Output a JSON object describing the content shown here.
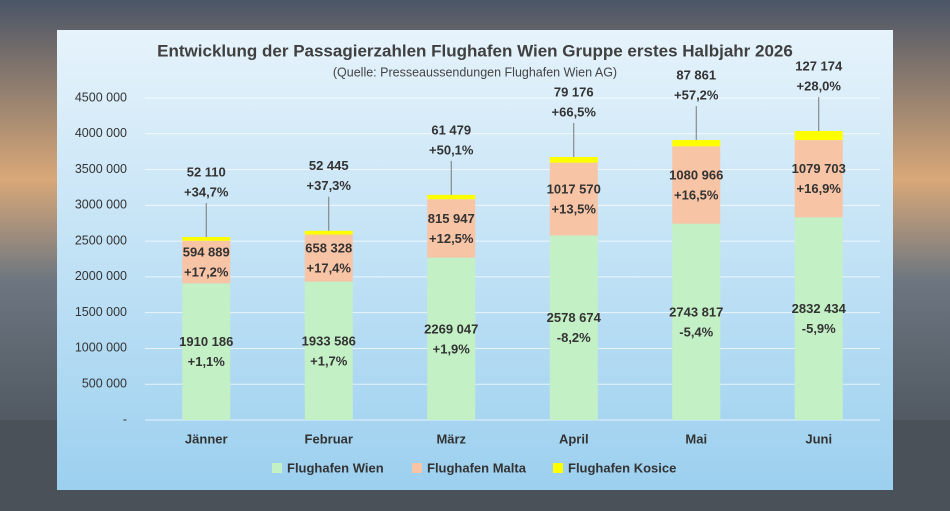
{
  "chart_data": {
    "type": "stacked-bar",
    "title": "Entwicklung der Passagierzahlen Flughafen Wien Gruppe erstes Halbjahr 2026",
    "subtitle": "(Quelle: Presseaussendungen Flughafen Wien AG)",
    "categories": [
      "Jänner",
      "Februar",
      "März",
      "April",
      "Mai",
      "Juni"
    ],
    "series": [
      {
        "name": "Flughafen Wien",
        "color": "#c4f0c6",
        "values": [
          1910186,
          1933586,
          2269047,
          2578674,
          2743817,
          2832434
        ],
        "value_labels": [
          "1910 186",
          "1933 586",
          "2269 047",
          "2578 674",
          "2743 817",
          "2832 434"
        ],
        "change_labels": [
          "+1,1%",
          "+1,7%",
          "+1,9%",
          "-8,2%",
          "-5,4%",
          "-5,9%"
        ]
      },
      {
        "name": "Flughafen Malta",
        "color": "#f7c4a6",
        "values": [
          594889,
          658328,
          815947,
          1017570,
          1080966,
          1079703
        ],
        "value_labels": [
          "594 889",
          "658 328",
          "815 947",
          "1017 570",
          "1080 966",
          "1079 703"
        ],
        "change_labels": [
          "+17,2%",
          "+17,4%",
          "+12,5%",
          "+13,5%",
          "+16,5%",
          "+16,9%"
        ]
      },
      {
        "name": "Flughafen Kosice",
        "color": "#ffff00",
        "values": [
          52110,
          52445,
          61479,
          79176,
          87861,
          127174
        ],
        "value_labels": [
          "52 110",
          "52 445",
          "61 479",
          "79 176",
          "87 861",
          "127 174"
        ],
        "change_labels": [
          "+34,7%",
          "+37,3%",
          "+50,1%",
          "+66,5%",
          "+57,2%",
          "+28,0%"
        ]
      }
    ],
    "ylim": [
      0,
      4500000
    ],
    "yticks": [
      {
        "value": 0,
        "label": "-"
      },
      {
        "value": 500000,
        "label": "500 000"
      },
      {
        "value": 1000000,
        "label": "1000 000"
      },
      {
        "value": 1500000,
        "label": "1500 000"
      },
      {
        "value": 2000000,
        "label": "2000 000"
      },
      {
        "value": 2500000,
        "label": "2500 000"
      },
      {
        "value": 3000000,
        "label": "3000 000"
      },
      {
        "value": 3500000,
        "label": "3500 000"
      },
      {
        "value": 4000000,
        "label": "4000 000"
      },
      {
        "value": 4500000,
        "label": "4500 000"
      }
    ],
    "grid": true,
    "legend": "bottom"
  }
}
